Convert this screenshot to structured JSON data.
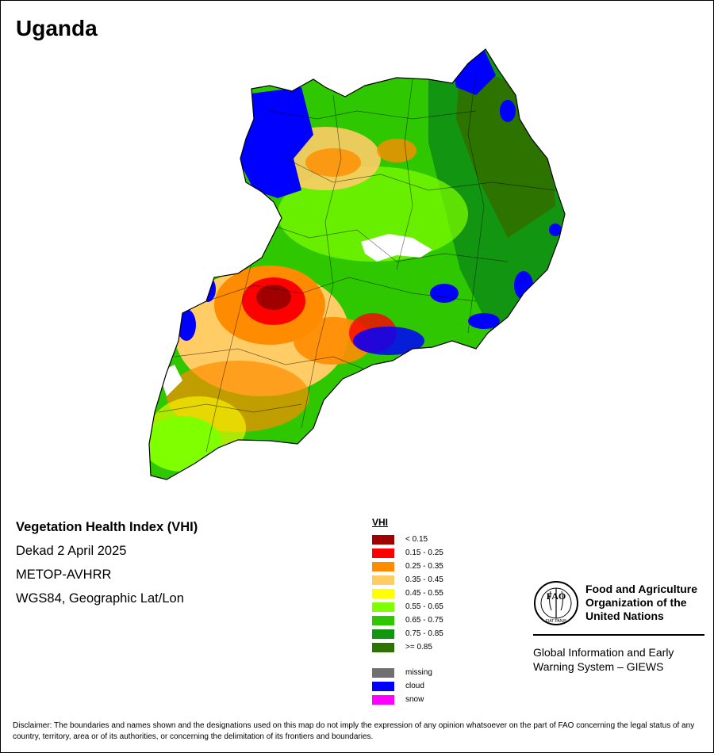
{
  "map": {
    "title": "Uganda",
    "description_lines": [
      "Vegetation Health Index (VHI)",
      "Dekad 2 April 2025",
      "METOP-AVHRR",
      "WGS84, Geographic Lat/Lon"
    ]
  },
  "legend": {
    "title": "VHI",
    "classes": [
      {
        "label": "< 0.15",
        "color": "#a00000"
      },
      {
        "label": "0.15 - 0.25",
        "color": "#ff0000"
      },
      {
        "label": "0.25 - 0.35",
        "color": "#ff8c00"
      },
      {
        "label": "0.35 - 0.45",
        "color": "#ffcc66"
      },
      {
        "label": "0.45 - 0.55",
        "color": "#ffff00"
      },
      {
        "label": "0.55 - 0.65",
        "color": "#80ff00"
      },
      {
        "label": "0.65 - 0.75",
        "color": "#2fc800"
      },
      {
        "label": "0.75 - 0.85",
        "color": "#129612"
      },
      {
        "label": ">= 0.85",
        "color": "#2d7300"
      }
    ],
    "special": [
      {
        "label": "missing",
        "color": "#707070"
      },
      {
        "label": "cloud",
        "color": "#0000ff"
      },
      {
        "label": "snow",
        "color": "#ff00ff"
      }
    ]
  },
  "org": {
    "logo_letters": "FAO",
    "logo_motto": "FIAT PANIS",
    "name_lines": [
      "Food and Agriculture",
      "Organization of the",
      "United Nations"
    ],
    "system_lines": [
      "Global Information and Early",
      "Warning System – GIEWS"
    ]
  },
  "disclaimer": "Disclaimer: The boundaries and names shown and the designations used on this map do not imply the expression of any opinion whatsoever on the part of FAO concerning the legal status of any country, territory, area or of its authorities, or concerning the delimitation of its frontiers and boundaries."
}
